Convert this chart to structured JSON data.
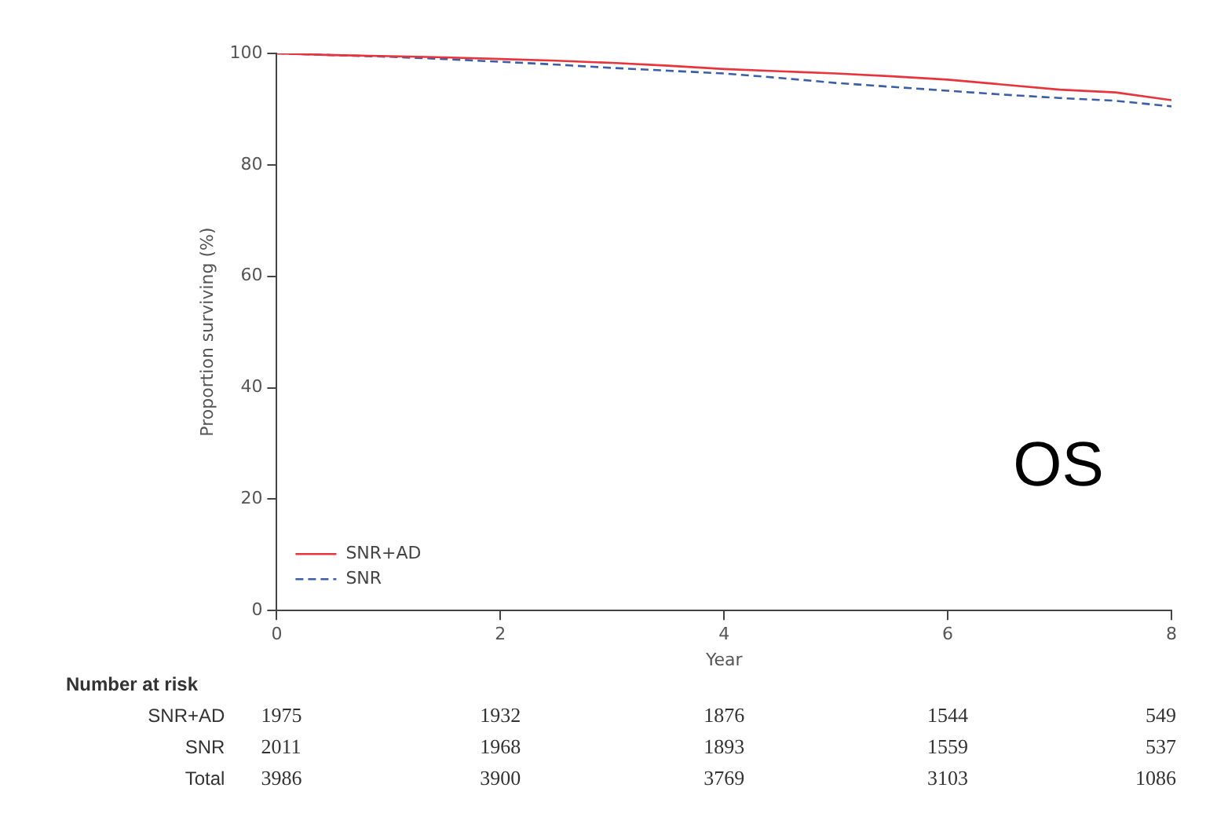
{
  "chart_data": {
    "type": "line",
    "xlabel": "Year",
    "ylabel": "Proportion surviving (%)",
    "xlim": [
      0,
      8
    ],
    "xticks": [
      0,
      2,
      4,
      6,
      8
    ],
    "ylim": [
      0,
      100
    ],
    "yticks": [
      0,
      20,
      40,
      60,
      80,
      100
    ],
    "grid": false,
    "legend": "bottom left",
    "marker": "none",
    "series": [
      {
        "name": "SNR+AD",
        "color": "#e8343c",
        "line_style": "solid",
        "x": [
          0,
          0.5,
          1,
          1.5,
          2,
          2.5,
          3,
          3.5,
          4,
          4.5,
          5,
          5.5,
          6,
          6.5,
          7,
          7.5,
          8
        ],
        "values": [
          100,
          99.7,
          99.5,
          99.3,
          99.0,
          98.7,
          98.3,
          97.8,
          97.2,
          96.8,
          96.4,
          95.9,
          95.3,
          94.4,
          93.5,
          93.0,
          91.6
        ]
      },
      {
        "name": "SNR",
        "color": "#3a5fa8",
        "line_style": "dashed",
        "x": [
          0,
          1,
          1.5,
          2,
          2.5,
          3,
          3.5,
          4,
          4.5,
          5,
          5.5,
          6,
          6.5,
          7,
          7.5,
          8
        ],
        "values": [
          100,
          99.4,
          99.0,
          98.5,
          98.0,
          97.4,
          96.9,
          96.4,
          95.6,
          94.7,
          94.0,
          93.3,
          92.6,
          92.0,
          91.5,
          90.5
        ]
      }
    ],
    "annotations": [
      "OS",
      "Number at risk",
      "SNR+AD",
      "1975",
      "1932",
      "1876",
      "1544",
      "549",
      "SNR",
      "2011",
      "1968",
      "1893",
      "1559",
      "537",
      "Total",
      "3986",
      "3900",
      "3769",
      "3103",
      "1086"
    ]
  }
}
